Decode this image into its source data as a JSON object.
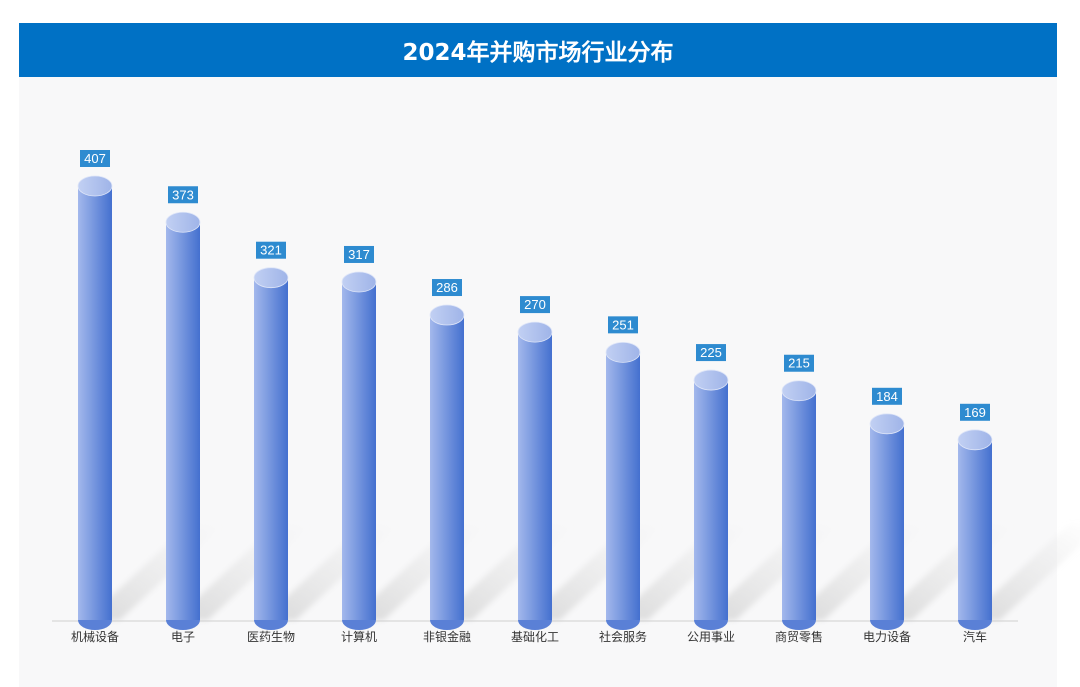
{
  "chart_data": {
    "type": "bar",
    "title": "2024年并购市场行业分布",
    "categories": [
      "机械设备",
      "电子",
      "医药生物",
      "计算机",
      "非银金融",
      "基础化工",
      "社会服务",
      "公用事业",
      "商贸零售",
      "电力设备",
      "汽车"
    ],
    "values": [
      407,
      373,
      321,
      317,
      286,
      270,
      251,
      225,
      215,
      184,
      169
    ],
    "xlabel": "",
    "ylabel": "",
    "ylim": [
      0,
      407
    ],
    "grid": false,
    "colors": {
      "title_bg": "#0071c5",
      "bar_light": "#a9bdef",
      "bar_dark": "#4a74d0",
      "label_bg": "#2e8bd0"
    }
  }
}
